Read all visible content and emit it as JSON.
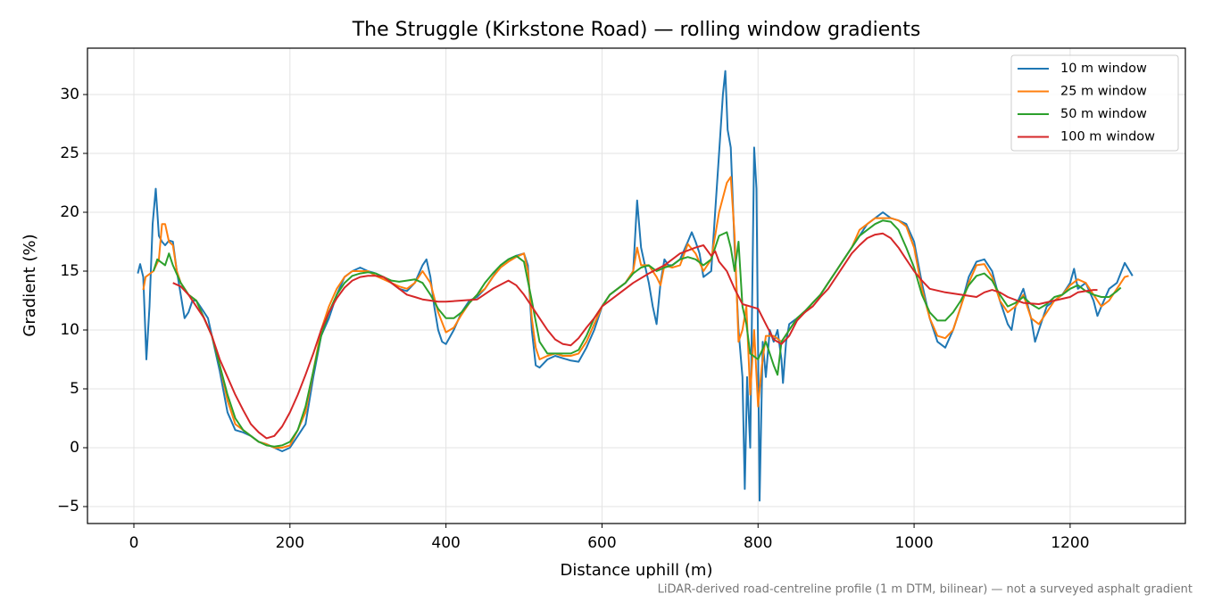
{
  "chart_data": {
    "type": "line",
    "title": "The Struggle (Kirkstone Road) — rolling window gradients",
    "xlabel": "Distance uphill (m)",
    "ylabel": "Gradient (%)",
    "annotation": "LiDAR-derived road-centreline profile (1 m DTM, bilinear) — not a surveyed asphalt gradient",
    "xlim": [
      -59.5,
      1347.7
    ],
    "ylim": [
      -6.44,
      33.94
    ],
    "xticks": [
      0,
      200,
      400,
      600,
      800,
      1000,
      1200
    ],
    "yticks": [
      {
        "value": -5,
        "label": "−5"
      },
      0,
      5,
      10,
      15,
      20,
      25,
      30
    ],
    "grid": true,
    "legend": "upper right",
    "series": [
      {
        "name": "10 m window",
        "color": "#1f77b4",
        "x": [
          5,
          8,
          12,
          16,
          20,
          24,
          28,
          32,
          36,
          40,
          45,
          50,
          55,
          60,
          65,
          70,
          75,
          80,
          85,
          90,
          95,
          100,
          110,
          120,
          130,
          140,
          150,
          160,
          170,
          180,
          190,
          200,
          210,
          220,
          230,
          240,
          250,
          260,
          270,
          280,
          290,
          300,
          310,
          320,
          330,
          340,
          350,
          360,
          370,
          375,
          380,
          385,
          390,
          395,
          400,
          410,
          420,
          430,
          440,
          450,
          460,
          470,
          480,
          490,
          500,
          505,
          510,
          515,
          520,
          530,
          540,
          550,
          560,
          570,
          580,
          590,
          600,
          610,
          620,
          630,
          640,
          645,
          650,
          655,
          660,
          665,
          670,
          675,
          680,
          685,
          690,
          700,
          710,
          715,
          720,
          725,
          730,
          740,
          745,
          750,
          755,
          758,
          761,
          765,
          770,
          775,
          780,
          783,
          786,
          790,
          795,
          798,
          802,
          806,
          810,
          815,
          820,
          825,
          830,
          832,
          836,
          840,
          850,
          860,
          870,
          880,
          890,
          900,
          910,
          920,
          930,
          940,
          950,
          960,
          970,
          980,
          990,
          1000,
          1010,
          1020,
          1030,
          1040,
          1050,
          1060,
          1070,
          1080,
          1090,
          1100,
          1110,
          1120,
          1125,
          1130,
          1140,
          1150,
          1155,
          1160,
          1170,
          1180,
          1190,
          1200,
          1205,
          1210,
          1220,
          1230,
          1235,
          1240,
          1250,
          1260,
          1270,
          1280
        ],
        "values": [
          14.8,
          15.6,
          14.5,
          7.5,
          12,
          19,
          22,
          18,
          17.5,
          17.2,
          17.6,
          17.5,
          15,
          13,
          11,
          11.5,
          12.5,
          12.5,
          12,
          11.5,
          11,
          9.5,
          6.5,
          3,
          1.5,
          1.3,
          1,
          0.5,
          0.3,
          0,
          -0.3,
          0,
          1,
          2,
          6,
          9.5,
          11,
          13,
          14.5,
          15,
          15.3,
          15,
          14.8,
          14.5,
          14,
          13.5,
          13.3,
          14,
          15.5,
          16,
          14.5,
          12,
          10,
          9,
          8.8,
          10,
          11.5,
          12.5,
          12.8,
          13.5,
          14.5,
          15.5,
          16,
          16.3,
          16.5,
          15.5,
          10,
          7,
          6.8,
          7.5,
          7.8,
          7.6,
          7.4,
          7.3,
          8.5,
          10,
          12,
          13,
          13.5,
          14,
          15,
          21,
          17,
          15.5,
          14,
          12,
          10.5,
          14,
          16,
          15.5,
          15.5,
          16,
          17.5,
          18.3,
          17.5,
          16.5,
          14.5,
          15,
          20,
          25,
          30,
          32,
          27,
          25.5,
          17,
          10,
          6,
          -3.5,
          6,
          0,
          25.5,
          22,
          -4.5,
          9,
          6,
          10,
          9,
          10,
          7.5,
          5.5,
          9,
          10.5,
          11,
          11.5,
          12.3,
          13,
          14,
          15,
          16,
          17,
          18,
          19,
          19.5,
          20,
          19.5,
          19.3,
          19,
          17.5,
          14,
          11,
          9,
          8.5,
          10,
          12,
          14.5,
          15.8,
          16,
          15,
          12.5,
          10.5,
          10,
          12,
          13.5,
          11,
          9,
          10,
          12,
          12.5,
          13,
          14,
          15.2,
          13.5,
          14,
          12.5,
          11.2,
          12,
          13.5,
          14,
          15.7,
          14.6
        ]
      },
      {
        "name": "25 m window",
        "color": "#ff7f0e",
        "x": [
          12,
          15,
          25,
          32,
          36,
          40,
          45,
          50,
          55,
          60,
          70,
          80,
          90,
          100,
          110,
          120,
          130,
          140,
          150,
          160,
          170,
          180,
          190,
          200,
          210,
          220,
          230,
          240,
          250,
          260,
          270,
          280,
          290,
          300,
          310,
          320,
          330,
          340,
          350,
          360,
          370,
          380,
          390,
          400,
          410,
          420,
          430,
          440,
          450,
          460,
          470,
          480,
          490,
          500,
          505,
          510,
          515,
          520,
          530,
          540,
          550,
          560,
          570,
          580,
          590,
          600,
          610,
          620,
          630,
          640,
          645,
          650,
          660,
          670,
          675,
          680,
          690,
          700,
          710,
          720,
          730,
          740,
          750,
          760,
          765,
          770,
          775,
          780,
          785,
          790,
          795,
          800,
          805,
          810,
          820,
          830,
          840,
          850,
          860,
          870,
          880,
          890,
          900,
          910,
          920,
          930,
          940,
          950,
          960,
          970,
          980,
          990,
          1000,
          1010,
          1020,
          1030,
          1040,
          1050,
          1060,
          1070,
          1080,
          1090,
          1100,
          1110,
          1120,
          1130,
          1140,
          1150,
          1160,
          1170,
          1180,
          1190,
          1200,
          1210,
          1220,
          1230,
          1240,
          1250,
          1260,
          1270,
          1275
        ],
        "values": [
          13.4,
          14.5,
          15,
          16,
          19,
          19,
          17.5,
          17.2,
          15,
          14,
          13,
          12.5,
          11,
          9.5,
          7,
          4,
          2,
          1.5,
          1,
          0.5,
          0.3,
          0,
          0,
          0.2,
          1.5,
          3,
          6.5,
          10,
          12,
          13.5,
          14.5,
          15,
          15,
          15,
          14.6,
          14.3,
          14,
          13.7,
          13.5,
          14,
          15,
          14,
          11.5,
          9.8,
          10.2,
          11.3,
          12.3,
          13,
          13.5,
          14.5,
          15.3,
          15.8,
          16.2,
          16.5,
          15,
          11,
          8.5,
          7.5,
          7.8,
          8,
          7.8,
          7.8,
          8,
          9,
          10.5,
          12,
          13,
          13.5,
          14,
          15,
          17,
          15.5,
          15.5,
          14.5,
          13.8,
          15.5,
          15.3,
          15.5,
          17.3,
          16.5,
          15,
          16,
          20,
          22.5,
          23,
          18,
          9,
          10,
          12,
          4.5,
          10,
          3.5,
          7,
          9.5,
          9.5,
          9,
          10,
          11,
          11.5,
          12.3,
          13,
          14,
          15,
          16,
          17,
          18.5,
          19,
          19.5,
          19.5,
          19.5,
          19.3,
          18.8,
          17,
          13.5,
          11,
          9.5,
          9.3,
          10,
          12,
          14,
          15.5,
          15.6,
          14.5,
          12.5,
          11.5,
          12,
          13,
          11,
          10.5,
          11.5,
          12.5,
          13,
          13.8,
          14.3,
          14,
          13,
          12,
          12.5,
          13.5,
          14.5,
          14.6
        ]
      },
      {
        "name": "50 m window",
        "color": "#2ca02c",
        "x": [
          25,
          30,
          40,
          45,
          50,
          60,
          70,
          80,
          90,
          100,
          110,
          120,
          130,
          140,
          150,
          160,
          170,
          180,
          190,
          200,
          210,
          220,
          230,
          240,
          250,
          260,
          270,
          280,
          290,
          300,
          310,
          320,
          330,
          340,
          350,
          360,
          370,
          380,
          390,
          400,
          410,
          420,
          430,
          440,
          450,
          460,
          470,
          480,
          490,
          500,
          510,
          520,
          530,
          540,
          550,
          560,
          570,
          580,
          590,
          600,
          610,
          620,
          630,
          640,
          650,
          660,
          670,
          680,
          690,
          700,
          710,
          720,
          730,
          740,
          750,
          760,
          765,
          770,
          775,
          780,
          785,
          790,
          800,
          810,
          820,
          825,
          830,
          840,
          850,
          860,
          870,
          880,
          890,
          900,
          910,
          920,
          930,
          940,
          950,
          960,
          970,
          980,
          990,
          1000,
          1010,
          1020,
          1030,
          1040,
          1050,
          1060,
          1070,
          1080,
          1090,
          1100,
          1110,
          1120,
          1130,
          1140,
          1150,
          1160,
          1170,
          1180,
          1190,
          1200,
          1210,
          1220,
          1230,
          1240,
          1250,
          1260,
          1265
        ],
        "values": [
          15,
          16,
          15.5,
          16.5,
          15.5,
          14,
          13,
          12.5,
          11,
          9.5,
          7,
          4.5,
          2.5,
          1.5,
          1,
          0.5,
          0.2,
          0.1,
          0.2,
          0.5,
          1.5,
          3.5,
          6.5,
          9.5,
          11.5,
          13,
          14,
          14.6,
          14.8,
          14.9,
          14.8,
          14.5,
          14.2,
          14.1,
          14.2,
          14.3,
          14,
          13,
          11.8,
          11,
          11,
          11.5,
          12.3,
          13,
          14,
          14.8,
          15.5,
          16,
          16.3,
          15.8,
          12.5,
          9,
          8,
          8,
          8,
          8,
          8.3,
          9.5,
          11,
          12,
          13,
          13.5,
          14,
          14.8,
          15.3,
          15.5,
          15,
          15.3,
          15.5,
          16,
          16.2,
          16,
          15.5,
          16,
          18,
          18.3,
          17,
          15,
          17.5,
          12,
          10.5,
          8,
          7.5,
          9,
          7,
          6.2,
          9,
          10,
          11,
          11.6,
          12.3,
          13,
          14,
          15,
          16,
          17,
          18,
          18.5,
          19,
          19.3,
          19.2,
          18.5,
          17,
          15.3,
          13,
          11.5,
          10.8,
          10.8,
          11.5,
          12.5,
          13.8,
          14.6,
          14.8,
          14.2,
          13,
          12,
          12.3,
          12.8,
          12.2,
          11.8,
          12.2,
          12.8,
          13,
          13.5,
          13.8,
          13.3,
          13,
          12.8,
          12.8,
          13.3,
          13.6
        ]
      },
      {
        "name": "100 m window",
        "color": "#d62728",
        "x": [
          50,
          60,
          70,
          80,
          90,
          100,
          110,
          120,
          130,
          140,
          150,
          160,
          170,
          180,
          190,
          200,
          210,
          220,
          230,
          240,
          250,
          260,
          270,
          280,
          290,
          300,
          310,
          320,
          330,
          340,
          350,
          360,
          370,
          380,
          390,
          400,
          420,
          440,
          460,
          480,
          490,
          500,
          510,
          520,
          530,
          540,
          550,
          560,
          570,
          580,
          590,
          600,
          620,
          640,
          660,
          680,
          700,
          720,
          730,
          740,
          745,
          750,
          760,
          770,
          780,
          790,
          800,
          810,
          820,
          830,
          840,
          850,
          860,
          870,
          880,
          890,
          900,
          910,
          920,
          930,
          940,
          950,
          960,
          970,
          980,
          990,
          1000,
          1010,
          1020,
          1040,
          1060,
          1080,
          1090,
          1100,
          1110,
          1120,
          1140,
          1160,
          1180,
          1200,
          1210,
          1220,
          1230,
          1235
        ],
        "values": [
          14,
          13.7,
          13,
          12,
          11,
          9.5,
          7.5,
          6,
          4.5,
          3.2,
          2,
          1.3,
          0.8,
          1,
          1.8,
          3,
          4.5,
          6.2,
          8,
          10,
          11.5,
          12.7,
          13.6,
          14.2,
          14.5,
          14.6,
          14.6,
          14.5,
          14,
          13.5,
          13,
          12.8,
          12.6,
          12.5,
          12.4,
          12.4,
          12.5,
          12.6,
          13.5,
          14.2,
          13.8,
          13,
          12,
          11,
          10,
          9.2,
          8.8,
          8.7,
          9.3,
          10.2,
          11,
          12,
          13,
          14,
          14.8,
          15.5,
          16.5,
          17,
          17.2,
          16.3,
          16.7,
          15.8,
          15,
          13.5,
          12.2,
          12,
          11.8,
          10.5,
          9.2,
          8.8,
          9.5,
          10.8,
          11.5,
          12,
          12.8,
          13.5,
          14.5,
          15.5,
          16.5,
          17.2,
          17.8,
          18.1,
          18.2,
          17.8,
          17,
          16,
          15,
          14.2,
          13.5,
          13.2,
          13,
          12.8,
          13.2,
          13.4,
          13.2,
          12.8,
          12.3,
          12.2,
          12.5,
          12.8,
          13.2,
          13.3,
          13.4,
          13.4
        ]
      }
    ]
  }
}
